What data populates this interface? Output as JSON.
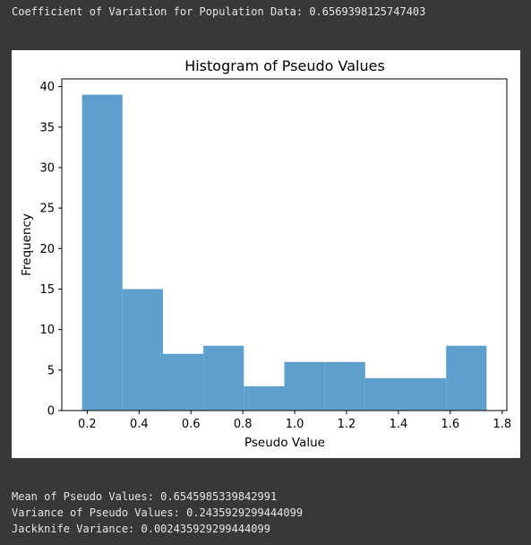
{
  "console": {
    "cv_line": "Coefficient of Variation for Population Data: 0.6569398125747403",
    "mean_line": "Mean of Pseudo Values: 0.6545985339842991",
    "variance_line": "Variance of Pseudo Values: 0.2435929299444099",
    "jackknife_line": "Jackknife Variance: 0.002435929299444099"
  },
  "chart_data": {
    "type": "bar",
    "title": "Histogram of Pseudo Values",
    "xlabel": "Pseudo Value",
    "ylabel": "Frequency",
    "bin_edges": [
      0.18,
      0.336,
      0.492,
      0.648,
      0.804,
      0.96,
      1.116,
      1.272,
      1.428,
      1.584,
      1.74
    ],
    "values": [
      39,
      15,
      7,
      8,
      3,
      6,
      6,
      4,
      4,
      8
    ],
    "xlim": [
      0.102,
      1.818
    ],
    "ylim": [
      0,
      40.95
    ],
    "xticks": [
      0.2,
      0.4,
      0.6,
      0.8,
      1.0,
      1.2,
      1.4,
      1.6,
      1.8
    ],
    "xtick_labels": [
      "0.2",
      "0.4",
      "0.6",
      "0.8",
      "1.0",
      "1.2",
      "1.4",
      "1.6",
      "1.8"
    ],
    "yticks": [
      0,
      5,
      10,
      15,
      20,
      25,
      30,
      35,
      40
    ],
    "ytick_labels": [
      "0",
      "5",
      "10",
      "15",
      "20",
      "25",
      "30",
      "35",
      "40"
    ],
    "bar_color": "#5f9fcc",
    "grid": false,
    "legend": "none"
  }
}
